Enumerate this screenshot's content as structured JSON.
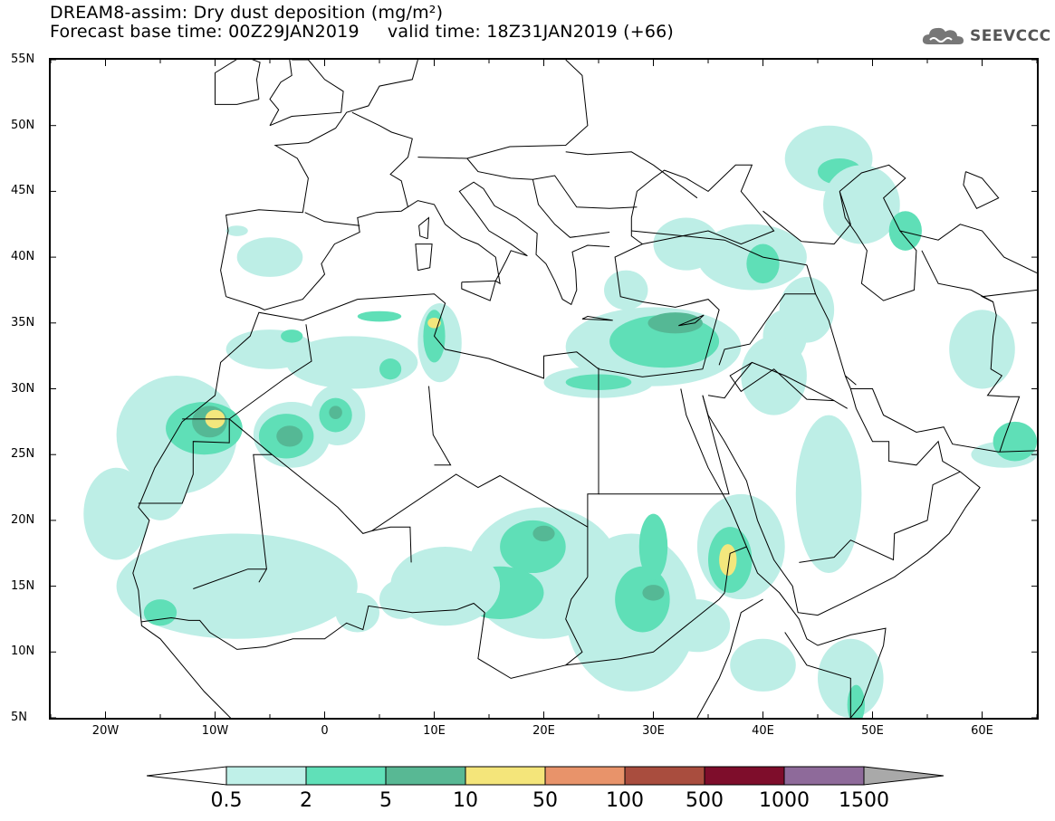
{
  "title": {
    "line1": "DREAM8-assim: Dry dust deposition (mg/m²)",
    "line2": "Forecast base time: 00Z29JAN2019     valid time: 18Z31JAN2019 (+66)"
  },
  "logo": {
    "text": "SEEVCCC",
    "icon": "cloud-icon"
  },
  "map": {
    "lon_range": [
      -25,
      65
    ],
    "lat_range": [
      5,
      55
    ],
    "y_ticks": [
      {
        "lat": 55,
        "label": "55N"
      },
      {
        "lat": 50,
        "label": "50N"
      },
      {
        "lat": 45,
        "label": "45N"
      },
      {
        "lat": 40,
        "label": "40N"
      },
      {
        "lat": 35,
        "label": "35N"
      },
      {
        "lat": 30,
        "label": "30N"
      },
      {
        "lat": 25,
        "label": "25N"
      },
      {
        "lat": 20,
        "label": "20N"
      },
      {
        "lat": 15,
        "label": "15N"
      },
      {
        "lat": 10,
        "label": "10N"
      },
      {
        "lat": 5,
        "label": "5N"
      }
    ],
    "x_ticks": [
      {
        "lon": -20,
        "label": "20W"
      },
      {
        "lon": -10,
        "label": "10W"
      },
      {
        "lon": 0,
        "label": "0"
      },
      {
        "lon": 10,
        "label": "10E"
      },
      {
        "lon": 20,
        "label": "20E"
      },
      {
        "lon": 30,
        "label": "30E"
      },
      {
        "lon": 40,
        "label": "40E"
      },
      {
        "lon": 50,
        "label": "50E"
      },
      {
        "lon": 60,
        "label": "60E"
      }
    ],
    "colors": {
      "land_line": "#000000",
      "c1": "#bdeee6",
      "c2": "#5fdfb7",
      "c3": "#55b895",
      "c4": "#f3e77d"
    }
  },
  "colorbar": {
    "labels": [
      "0.5",
      "2",
      "5",
      "10",
      "50",
      "100",
      "500",
      "1000",
      "1500"
    ],
    "colors": [
      "#bff0e8",
      "#60e0b8",
      "#58b894",
      "#f4e57a",
      "#e8936a",
      "#a94d3e",
      "#7e0d2b",
      "#8e6a9a"
    ],
    "under_color": "#ffffff",
    "over_color": "#a9a9a9"
  }
}
